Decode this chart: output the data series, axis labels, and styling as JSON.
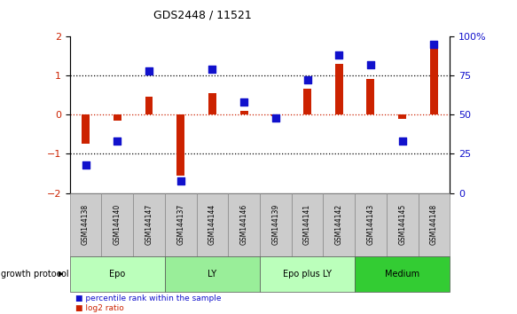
{
  "title": "GDS2448 / 11521",
  "samples": [
    "GSM144138",
    "GSM144140",
    "GSM144147",
    "GSM144137",
    "GSM144144",
    "GSM144146",
    "GSM144139",
    "GSM144141",
    "GSM144142",
    "GSM144143",
    "GSM144145",
    "GSM144148"
  ],
  "log2_ratio": [
    -0.75,
    -0.15,
    0.45,
    -1.55,
    0.55,
    0.1,
    -0.05,
    0.65,
    1.3,
    0.9,
    -0.1,
    1.85
  ],
  "percentile_rank": [
    18,
    33,
    78,
    8,
    79,
    58,
    48,
    72,
    88,
    82,
    33,
    95
  ],
  "groups": [
    {
      "label": "Epo",
      "start": 0,
      "end": 3,
      "color": "#bbffbb"
    },
    {
      "label": "LY",
      "start": 3,
      "end": 6,
      "color": "#99ee99"
    },
    {
      "label": "Epo plus LY",
      "start": 6,
      "end": 9,
      "color": "#bbffbb"
    },
    {
      "label": "Medium",
      "start": 9,
      "end": 12,
      "color": "#33cc33"
    }
  ],
  "bar_color": "#cc2200",
  "dot_color": "#1111cc",
  "left_ylim": [
    -2,
    2
  ],
  "right_ylim": [
    0,
    100
  ],
  "left_yticks": [
    -2,
    -1,
    0,
    1,
    2
  ],
  "right_yticks": [
    0,
    25,
    50,
    75,
    100
  ],
  "right_yticklabels": [
    "0",
    "25",
    "50",
    "75",
    "100%"
  ],
  "hlines_black": [
    -1,
    1
  ],
  "hline_red": 0,
  "legend_items": [
    {
      "color": "#cc2200",
      "label": "log2 ratio"
    },
    {
      "color": "#1111cc",
      "label": "percentile rank within the sample"
    }
  ],
  "group_row_label": "growth protocol",
  "bar_width": 0.25,
  "dot_size": 28,
  "sample_box_color": "#cccccc",
  "sample_box_edgecolor": "#888888"
}
